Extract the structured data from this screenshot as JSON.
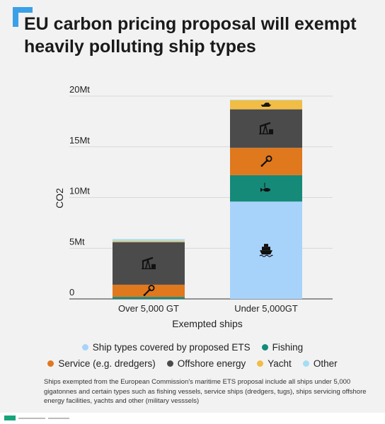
{
  "header": {
    "title": "EU carbon pricing proposal will exempt heavily polluting ship types"
  },
  "colors": {
    "accent": "#3ba0e6",
    "ship_types_covered": "#a7d3fb",
    "fishing": "#158a79",
    "service": "#e0781e",
    "offshore_energy": "#4b4b4b",
    "yacht": "#f2bd45",
    "other": "#a4ddf3"
  },
  "chart_data": {
    "type": "bar",
    "stacked": true,
    "categories": [
      "Over 5,000 GT",
      "Under 5,000GT"
    ],
    "xlabel": "Exempted ships",
    "ylabel": "CO2",
    "ylim": [
      0,
      20
    ],
    "ytick_labels": [
      "0",
      "5Mt",
      "10Mt",
      "15Mt",
      "20Mt"
    ],
    "grid": true,
    "legend_position": "bottom",
    "series": [
      {
        "name": "Ship types covered by proposed ETS",
        "values": [
          0,
          9.6
        ],
        "icon": "ship-icon"
      },
      {
        "name": "Fishing",
        "values": [
          0.2,
          2.6
        ],
        "icon": "fish-icon"
      },
      {
        "name": "Service (e.g. dredgers)",
        "values": [
          1.2,
          2.7
        ],
        "icon": "wrench-icon"
      },
      {
        "name": "Offshore energy",
        "values": [
          4.2,
          3.8
        ],
        "icon": "oil-pump-icon"
      },
      {
        "name": "Yacht",
        "values": [
          0.1,
          0.9
        ],
        "icon": "yacht-icon"
      },
      {
        "name": "Other",
        "values": [
          0.2,
          0.05
        ],
        "icon": ""
      }
    ]
  },
  "legend": {
    "items": [
      {
        "label": "Ship types covered by proposed ETS",
        "color": "#a7d3fb"
      },
      {
        "label": "Fishing",
        "color": "#158a79"
      },
      {
        "label": "Service (e.g. dredgers)",
        "color": "#e0781e"
      },
      {
        "label": "Offshore energy",
        "color": "#4b4b4b"
      },
      {
        "label": "Yacht",
        "color": "#f2bd45"
      },
      {
        "label": "Other",
        "color": "#a4ddf3"
      }
    ]
  },
  "footnote": "Ships exempted from the European Commission's maritime ETS proposal include all ships under 5,000 gigatonnes and certain types such as fishing  vessels, service ships (dredgers, tugs), ships servicing offshore energy facilities, yachts and other (military vesssels)"
}
